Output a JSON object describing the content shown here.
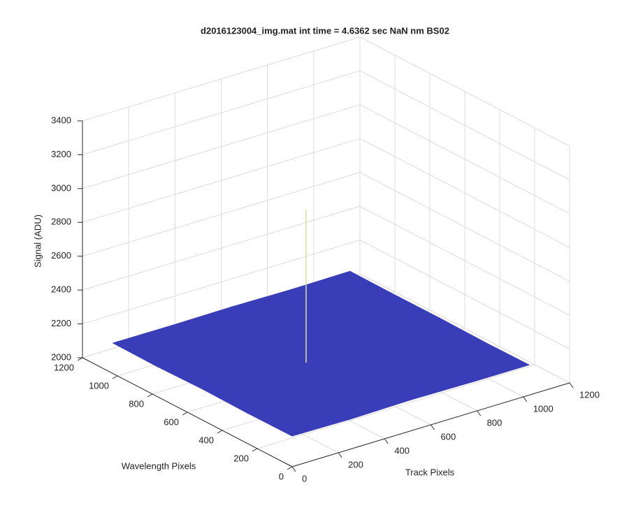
{
  "chart_data": {
    "type": "surface",
    "title": "d2016123004_img.mat int time = 4.6362 sec  NaN nm BS02",
    "xlabel": "Track Pixels",
    "ylabel": "Wavelength Pixels",
    "zlabel": "Signal (ADU)",
    "x": [
      0,
      256,
      512,
      768,
      1024
    ],
    "y": [
      0,
      256,
      512,
      768,
      1024
    ],
    "z": [
      [
        2182,
        2178,
        2184,
        2180,
        2179
      ],
      [
        2180,
        2185,
        2181,
        2183,
        2177
      ],
      [
        2184,
        2179,
        2186,
        2182,
        2181
      ],
      [
        2178,
        2183,
        2180,
        2185,
        2180
      ],
      [
        2181,
        2180,
        2183,
        2179,
        2182
      ]
    ],
    "spike": {
      "x": 420,
      "y": 476,
      "z": 3090
    },
    "color": "#3a3db8",
    "spike_color": "#d8e0a0",
    "xlim": [
      0,
      1200
    ],
    "ylim": [
      0,
      1200
    ],
    "zlim": [
      2000,
      3400
    ],
    "xticks": [
      0,
      200,
      400,
      600,
      800,
      1000,
      1200
    ],
    "yticks": [
      0,
      200,
      400,
      600,
      800,
      1000,
      1200
    ],
    "zticks": [
      2000,
      2200,
      2400,
      2600,
      2800,
      3000,
      3200,
      3400
    ],
    "grid": true
  }
}
